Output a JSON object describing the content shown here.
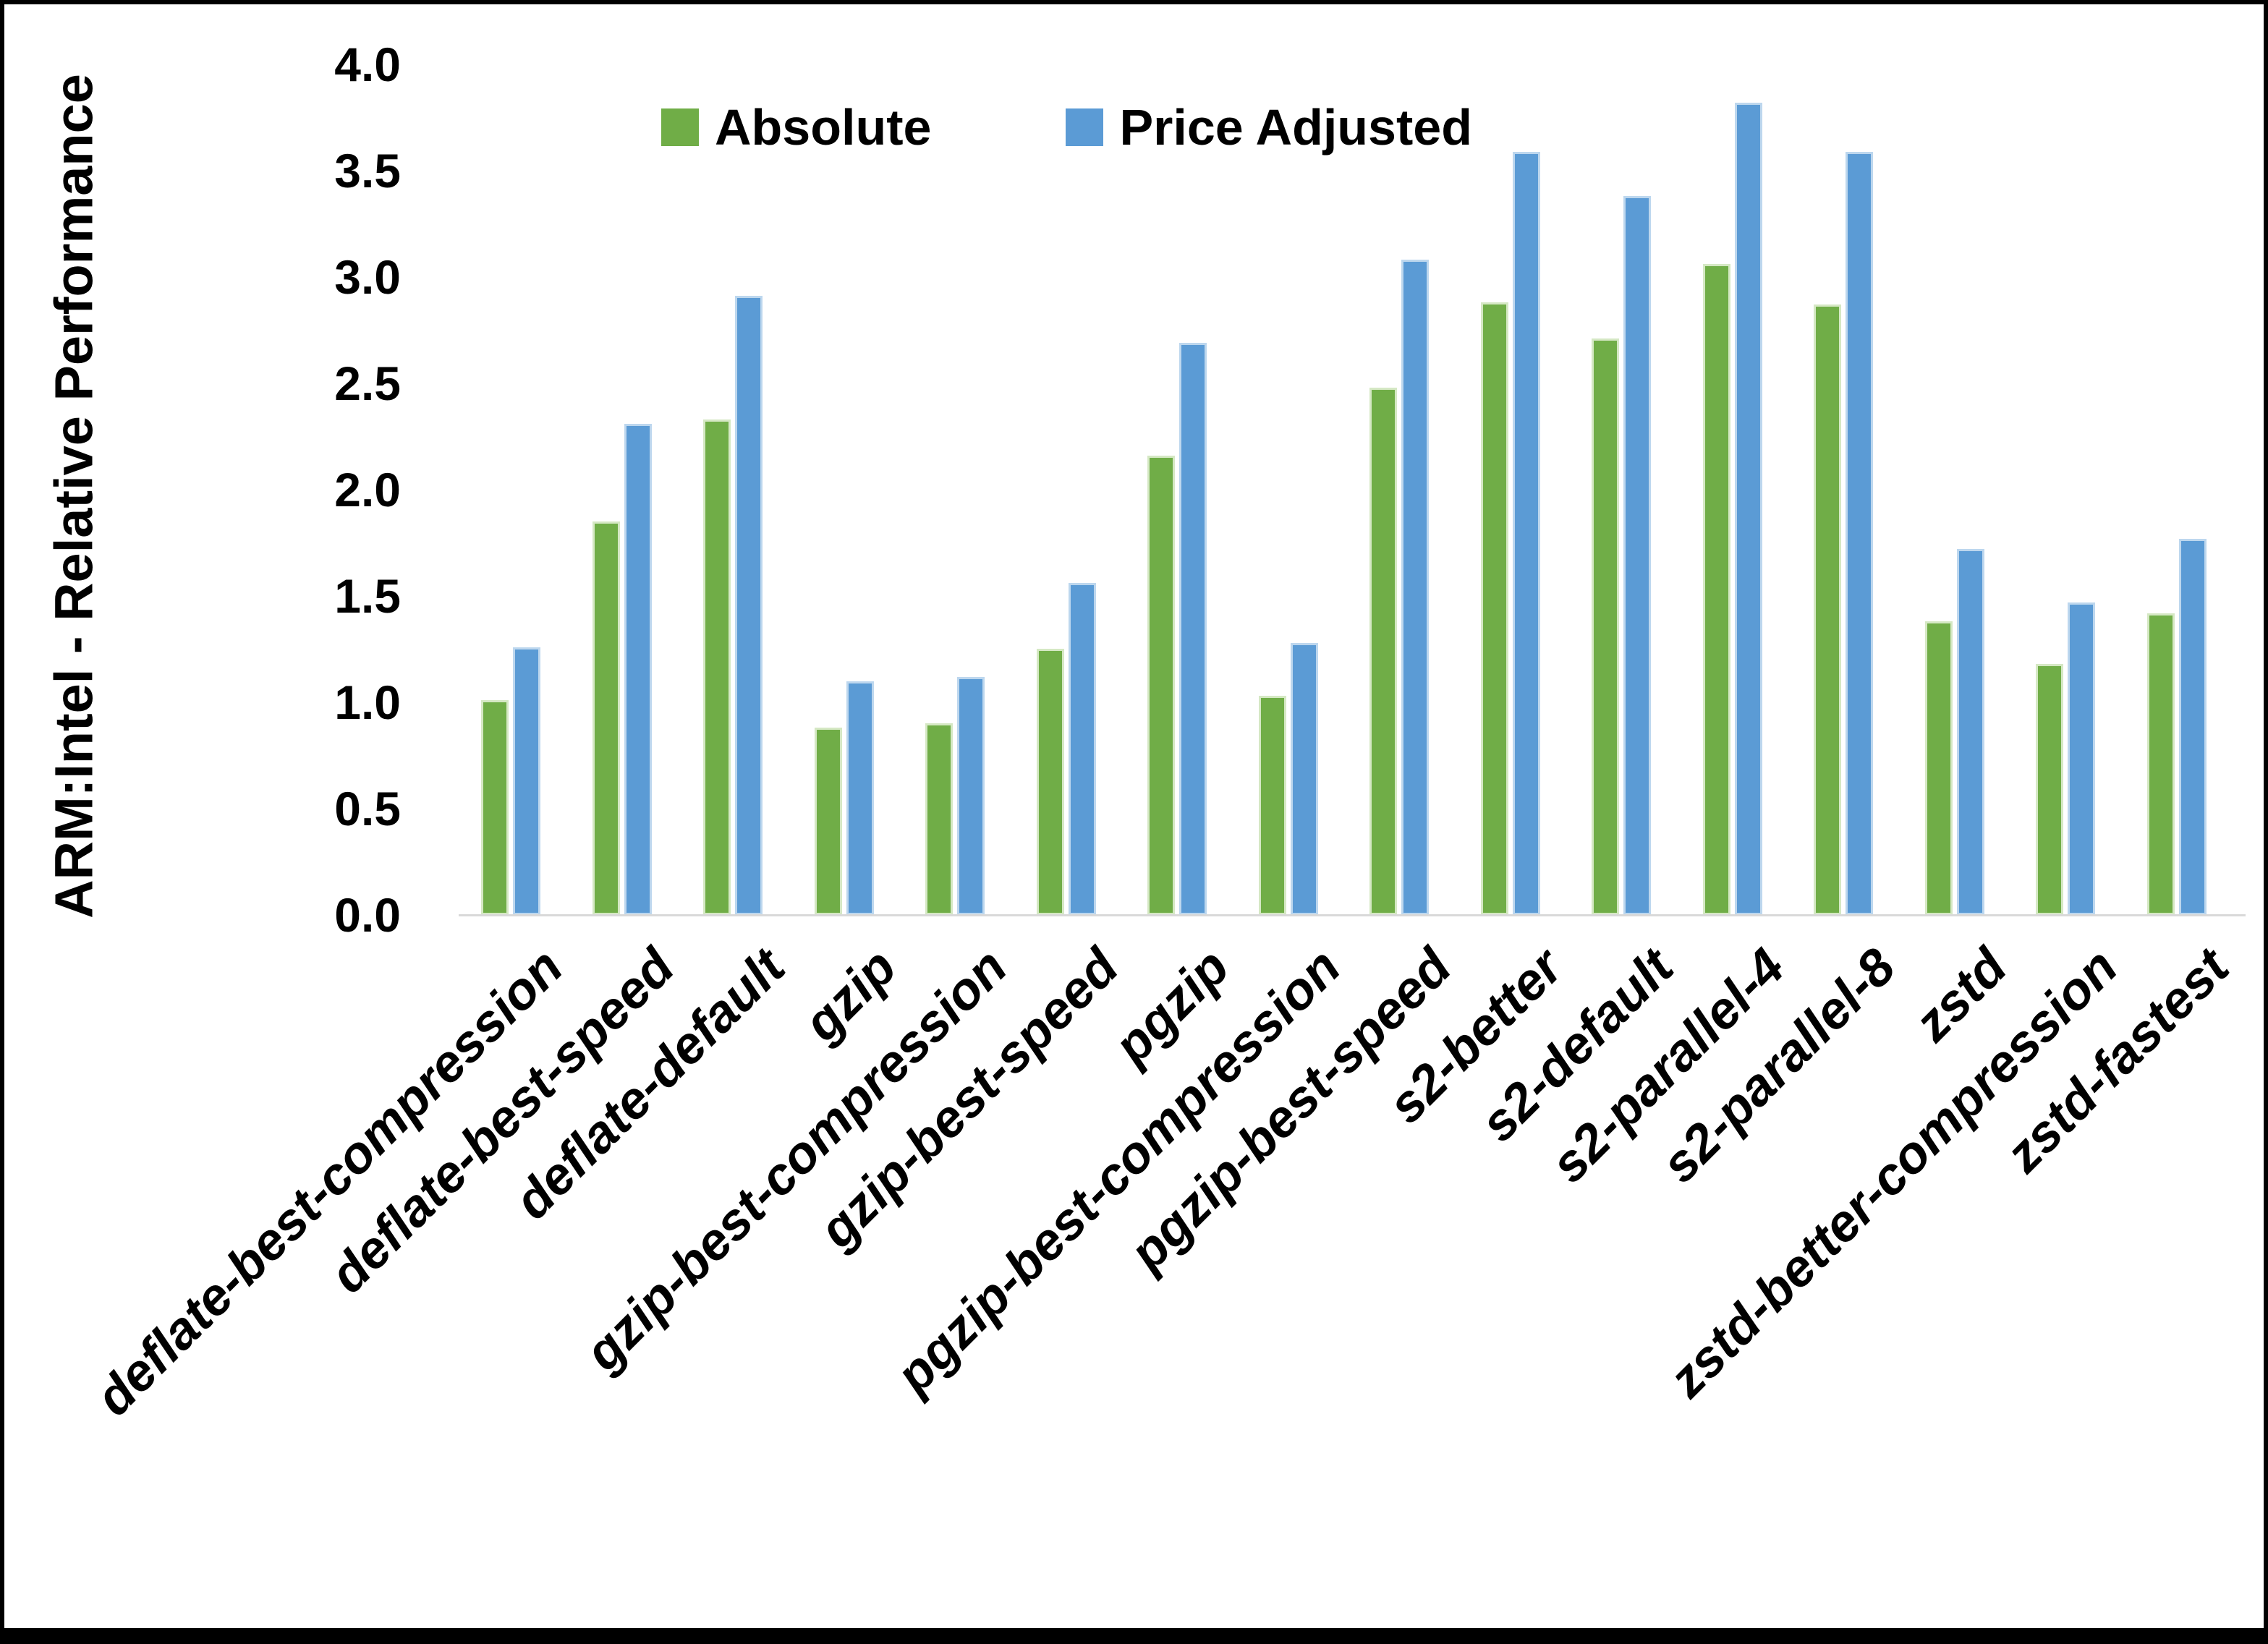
{
  "figure": {
    "background": "#FFFFFF",
    "border_color": "#000000"
  },
  "y_axis": {
    "title": "ARM:Intel - Relative Performance",
    "tick_labels": [
      "0.0",
      "0.5",
      "1.0",
      "1.5",
      "2.0",
      "2.5",
      "3.0",
      "3.5",
      "4.0"
    ],
    "min": 0,
    "max": 4,
    "axis_line_color": "#D9D9D9"
  },
  "legend": {
    "items": [
      {
        "label": "Absolute",
        "color": "#70AD47"
      },
      {
        "label": "Price Adjusted",
        "color": "#5B9BD5"
      }
    ],
    "position": "top"
  },
  "chart_data": {
    "type": "bar",
    "title": "",
    "xlabel": "",
    "ylabel": "ARM:Intel - Relative Performance",
    "ylim": [
      0,
      4
    ],
    "ytick_step": 0.5,
    "grid": false,
    "legend_position": "top",
    "categories": [
      "deflate-best-compression",
      "deflate-best-speed",
      "deflate-default",
      "gzip",
      "gzip-best-compression",
      "gzip-best-speed",
      "pgzip",
      "pgzip-best-compression",
      "pgzip-best-speed",
      "s2-better",
      "s2-default",
      "s2-parallel-4",
      "s2-parallel-8",
      "zstd",
      "zstd-better-compression",
      "zstd-fastest"
    ],
    "series": [
      {
        "name": "Absolute",
        "color": "#70AD47",
        "edge_color": "#D5E8C4",
        "values": [
          1.01,
          1.85,
          2.33,
          0.88,
          0.9,
          1.25,
          2.16,
          1.03,
          2.48,
          2.88,
          2.71,
          3.06,
          2.87,
          1.38,
          1.18,
          1.42
        ]
      },
      {
        "name": "Price Adjusted",
        "color": "#5B9BD5",
        "edge_color": "#BDD7EE",
        "values": [
          1.26,
          2.31,
          2.91,
          1.1,
          1.12,
          1.56,
          2.69,
          1.28,
          3.08,
          3.59,
          3.38,
          3.82,
          3.59,
          1.72,
          1.47,
          1.77
        ]
      }
    ]
  }
}
